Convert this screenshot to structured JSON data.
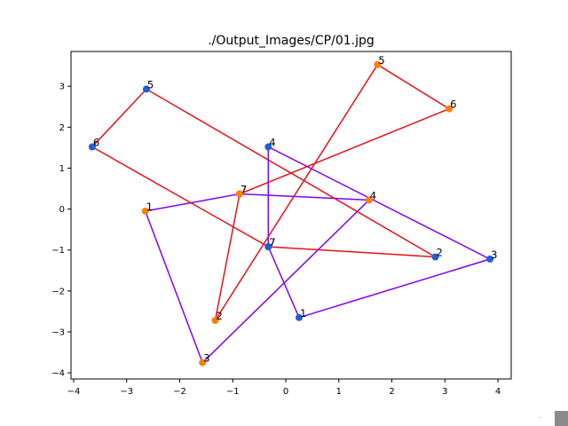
{
  "chart_data": {
    "type": "scatter",
    "title": "./Output_Images/CP/01.jpg",
    "xlabel": "",
    "ylabel": "",
    "xlim": [
      -4.05,
      4.25
    ],
    "ylim": [
      -4.15,
      3.85
    ],
    "xticks": [
      -4,
      -3,
      -2,
      -1,
      0,
      1,
      2,
      3,
      4
    ],
    "yticks": [
      -4,
      -3,
      -2,
      -1,
      0,
      1,
      2,
      3
    ],
    "xtick_labels": [
      "−4",
      "−3",
      "−2",
      "−1",
      "0",
      "1",
      "2",
      "3",
      "4"
    ],
    "ytick_labels": [
      "−4",
      "−3",
      "−2",
      "−1",
      "0",
      "1",
      "2",
      "3"
    ],
    "grid": false,
    "polygons": [
      {
        "line_color": "#7f00ff",
        "closed": true,
        "points": [
          {
            "label": "1",
            "x": -2.65,
            "y": -0.05,
            "color": "#ff7f0e"
          },
          {
            "label": "7",
            "x": -0.87,
            "y": 0.37,
            "color": "#ff7f0e"
          },
          {
            "label": "4",
            "x": 1.57,
            "y": 0.22,
            "color": "#ff7f0e"
          },
          {
            "label": "3",
            "x": -1.57,
            "y": -3.75,
            "color": "#ff7f0e"
          }
        ]
      },
      {
        "line_color": "#7f00ff",
        "closed": true,
        "points": [
          {
            "label": "1",
            "x": 0.25,
            "y": -2.65,
            "color": "#1f5fd6"
          },
          {
            "label": "3",
            "x": 3.85,
            "y": -1.22,
            "color": "#1f5fd6"
          },
          {
            "label": "4",
            "x": -0.33,
            "y": 1.52,
            "color": "#1f5fd6"
          },
          {
            "label": "7",
            "x": -0.33,
            "y": -0.92,
            "color": "#1f5fd6"
          }
        ]
      },
      {
        "line_color": "#e8101a",
        "closed": true,
        "points": [
          {
            "label": "2",
            "x": -1.33,
            "y": -2.72,
            "color": "#ff7f0e"
          },
          {
            "label": "5",
            "x": 1.73,
            "y": 3.53,
            "color": "#ff7f0e"
          },
          {
            "label": "6",
            "x": 3.08,
            "y": 2.45,
            "color": "#ff7f0e"
          },
          {
            "label": "7",
            "x": -0.87,
            "y": 0.37,
            "color": "#ff7f0e"
          }
        ]
      },
      {
        "line_color": "#e8101a",
        "closed": true,
        "points": [
          {
            "label": "2",
            "x": 2.82,
            "y": -1.17,
            "color": "#1f5fd6"
          },
          {
            "label": "5",
            "x": -2.63,
            "y": 2.93,
            "color": "#1f5fd6"
          },
          {
            "label": "6",
            "x": -3.65,
            "y": 1.52,
            "color": "#1f5fd6"
          },
          {
            "label": "7",
            "x": -0.33,
            "y": -0.92,
            "color": "#1f5fd6"
          }
        ]
      }
    ]
  }
}
